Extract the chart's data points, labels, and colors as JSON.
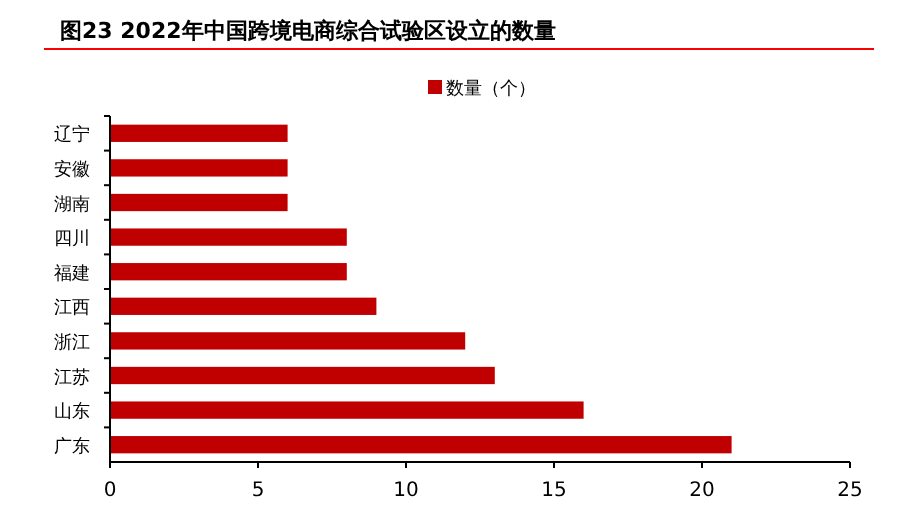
{
  "chart_data": {
    "type": "bar",
    "orientation": "horizontal",
    "title": "图23 2022年中国跨境电商综合试验区设立的数量",
    "categories": [
      "辽宁",
      "安徽",
      "湖南",
      "四川",
      "福建",
      "江西",
      "浙江",
      "江苏",
      "山东",
      "广东"
    ],
    "series": [
      {
        "name": "数量（个）",
        "color": "#c00000",
        "values": [
          6,
          6,
          6,
          8,
          8,
          9,
          12,
          13,
          16,
          21
        ]
      }
    ],
    "xlim": [
      0,
      25
    ],
    "xticks": [
      0,
      5,
      10,
      15,
      20,
      25
    ],
    "legend": "top"
  }
}
